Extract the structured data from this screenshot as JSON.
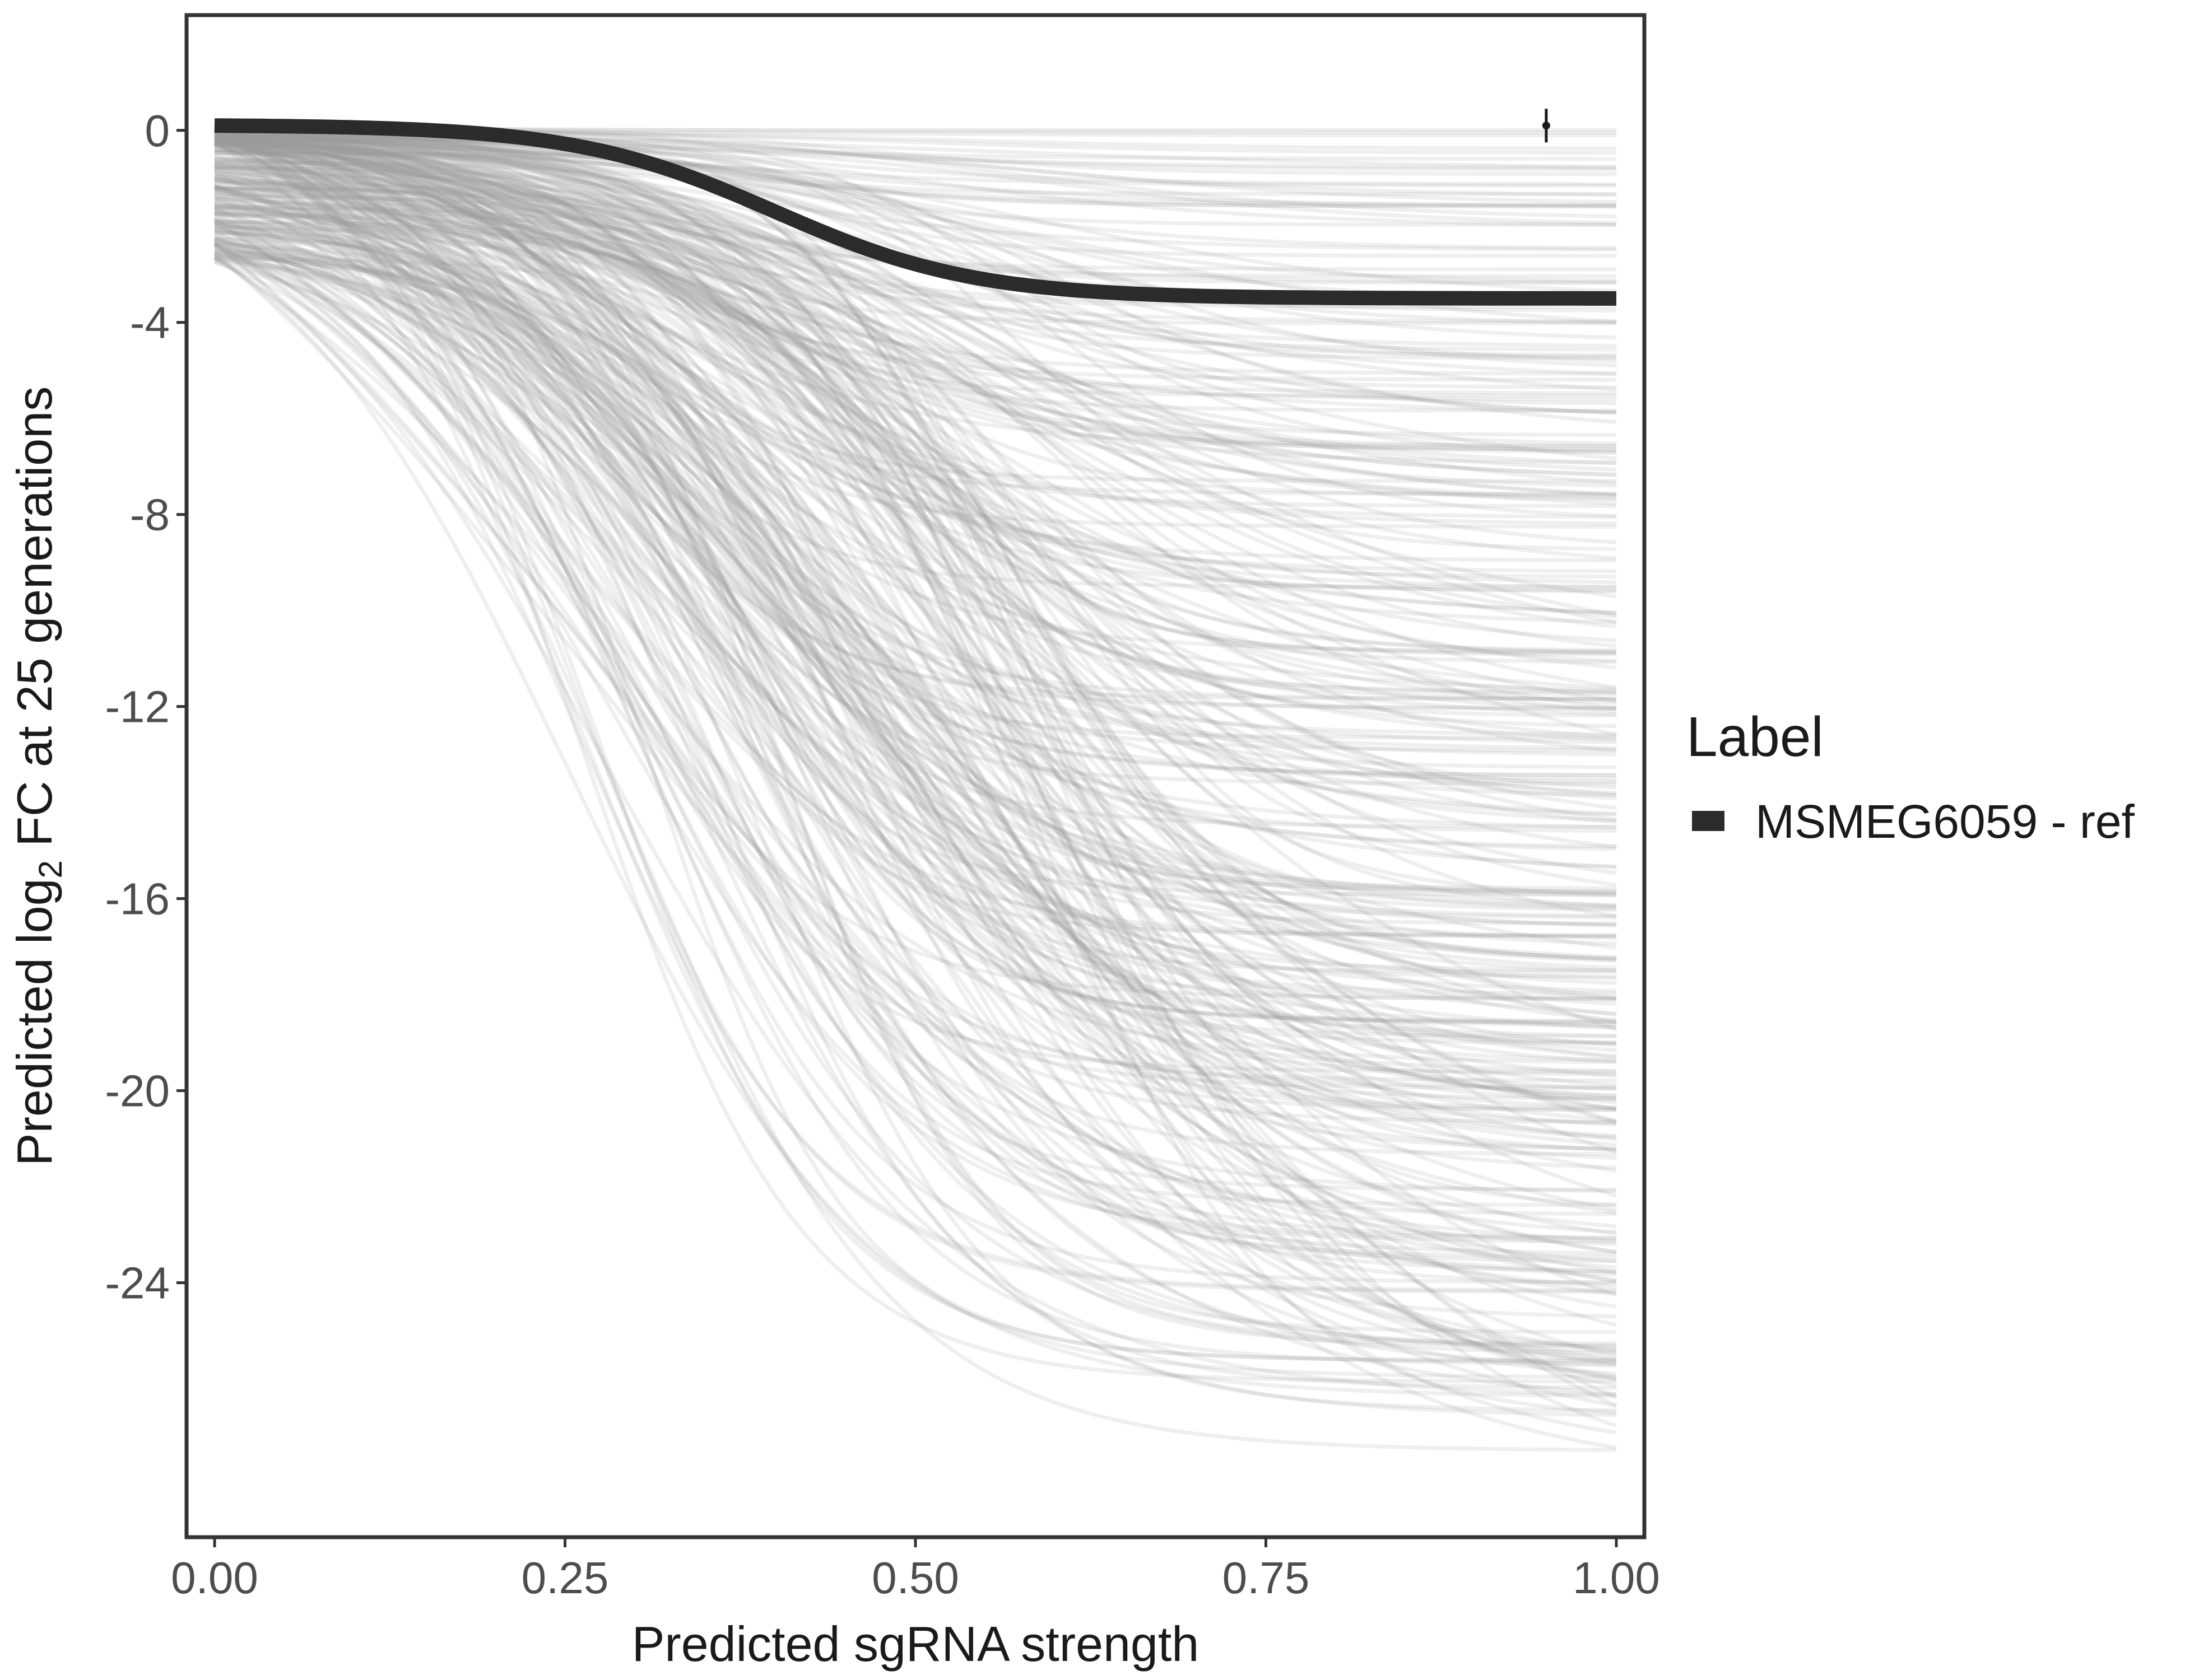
{
  "chart_data": {
    "type": "line",
    "xlabel": "Predicted sgRNA strength",
    "ylabel": {
      "prefix": "Predicted  log",
      "subscript": "2",
      "suffix": " FC at 25 generations"
    },
    "xlim": [
      -0.02,
      1.02
    ],
    "ylim": [
      -29.3,
      2.4
    ],
    "x_ticks": [
      0,
      0.25,
      0.5,
      0.75,
      1
    ],
    "x_tick_labels": [
      "0.00",
      "0.25",
      "0.50",
      "0.75",
      "1.00"
    ],
    "y_ticks": [
      0,
      -4,
      -8,
      -12,
      -16,
      -20,
      -24
    ],
    "y_tick_labels": [
      "0",
      "-4",
      "-8",
      "-12",
      "-16",
      "-20",
      "-24"
    ],
    "grid": false,
    "legend": {
      "title": "Label",
      "position": "right",
      "entries": [
        {
          "label": "MSMEG6059 - ref",
          "color": "#2b2b2b"
        }
      ]
    },
    "highlight_series": {
      "name": "MSMEG6059 - ref",
      "color": "#2b2b2b",
      "model": "sigmoid",
      "y_start": 0.1,
      "y_end": -3.5,
      "midpoint": 0.4,
      "steepness": 14
    },
    "background_series": {
      "color": "#9e9e9e",
      "count": 360,
      "model": "sigmoid",
      "x_range": [
        0,
        1
      ],
      "y_end_range": [
        -27.5,
        0.1
      ],
      "midpoint_range": [
        0.25,
        0.6
      ]
    },
    "reference_point": {
      "x": 0.95,
      "y": 0.1,
      "ymin": -0.25,
      "ymax": 0.45
    }
  }
}
